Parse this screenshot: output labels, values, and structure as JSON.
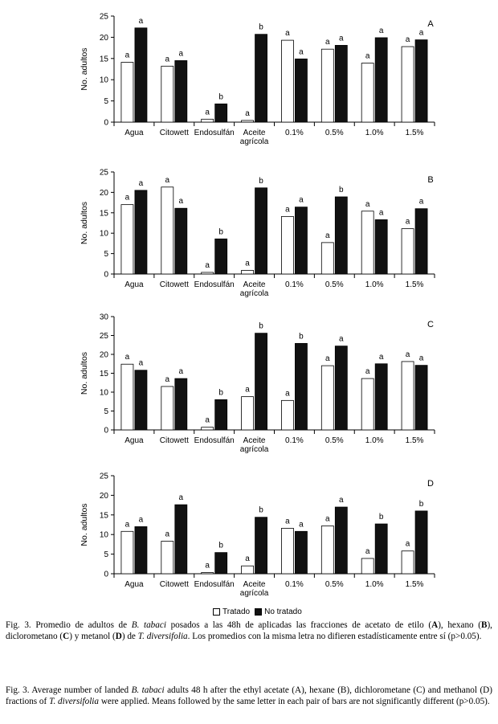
{
  "legend": {
    "tratado": "Tratado",
    "no_tratado": "No tratado"
  },
  "colors": {
    "tratado": "#ffffff",
    "no_tratado": "#111111",
    "axis": "#000000"
  },
  "caption_es": {
    "p1": "Fig. 3. Promedio de adultos de ",
    "species": "B. tabaci",
    "p2": " posados a las 48h de aplicadas las fracciones de acetato de etilo (",
    "A": "A",
    "p3": "), hexano (",
    "B": "B",
    "p4": "), diclorometano (",
    "C": "C",
    "p5": ") y metanol (",
    "D": "D",
    "p6": ") de ",
    "plant": "T. diversifolia",
    "p7": ". Los promedios con la misma letra no difieren estadísticamente entre sí (p>0.05)."
  },
  "caption_en": {
    "p1": "Fig. 3. Average number of landed ",
    "species": "B. tabaci",
    "p2": " adults 48 h after the ethyl acetate (A), hexane (B), dichlorometane (C) and methanol (D) fractions of ",
    "plant": "T. diversifolia",
    "p3": " were applied. Means followed by the same letter in each pair of bars are not significantly different (p>0.05)."
  },
  "chart_data": [
    {
      "type": "bar",
      "panel": "A",
      "ylabel": "No. adultos",
      "ylim": [
        0,
        25
      ],
      "yticks": [
        0,
        5,
        10,
        15,
        20,
        25
      ],
      "categories": [
        "Agua",
        "Citowett",
        "Endosulfán",
        "Aceite agrícola",
        "0.1%",
        "0.5%",
        "1.0%",
        "1.5%"
      ],
      "series": [
        {
          "name": "Tratado",
          "values": [
            14.1,
            13.2,
            0.7,
            0.4,
            19.3,
            17.2,
            13.9,
            17.8
          ],
          "letters": [
            "a",
            "a",
            "a",
            "a",
            "a",
            "a",
            "a",
            "a"
          ]
        },
        {
          "name": "No tratado",
          "values": [
            22.2,
            14.5,
            4.3,
            20.7,
            14.9,
            18.1,
            19.9,
            19.4
          ],
          "letters": [
            "a",
            "a",
            "b",
            "b",
            "a",
            "a",
            "a",
            "a"
          ]
        }
      ]
    },
    {
      "type": "bar",
      "panel": "B",
      "ylabel": "No. adultos",
      "ylim": [
        0,
        25
      ],
      "yticks": [
        0,
        5,
        10,
        15,
        20,
        25
      ],
      "categories": [
        "Agua",
        "Citowett",
        "Endosulfán",
        "Aceite agrícola",
        "0.1%",
        "0.5%",
        "1.0%",
        "1.5%"
      ],
      "series": [
        {
          "name": "Tratado",
          "values": [
            17.0,
            21.3,
            0.4,
            0.9,
            14.1,
            7.7,
            15.4,
            11.1
          ],
          "letters": [
            "a",
            "a",
            "a",
            "a",
            "a",
            "a",
            "a",
            "a"
          ]
        },
        {
          "name": "No tratado",
          "values": [
            20.5,
            16.1,
            8.6,
            21.1,
            16.4,
            18.9,
            13.3,
            16.0
          ],
          "letters": [
            "a",
            "a",
            "b",
            "b",
            "a",
            "b",
            "a",
            "a"
          ]
        }
      ]
    },
    {
      "type": "bar",
      "panel": "C",
      "ylabel": "No. adultos",
      "ylim": [
        0,
        30
      ],
      "yticks": [
        0,
        5,
        10,
        15,
        20,
        25,
        30
      ],
      "categories": [
        "Agua",
        "Citowett",
        "Endosulfán",
        "Aceite agrícola",
        "0.1%",
        "0.5%",
        "1.0%",
        "1.5%"
      ],
      "series": [
        {
          "name": "Tratado",
          "values": [
            17.4,
            11.5,
            0.7,
            8.8,
            7.8,
            17.0,
            13.6,
            18.1
          ],
          "letters": [
            "a",
            "a",
            "a",
            "a",
            "a",
            "a",
            "a",
            "a"
          ]
        },
        {
          "name": "No tratado",
          "values": [
            15.8,
            13.6,
            8.0,
            25.6,
            22.9,
            22.2,
            17.5,
            17.1
          ],
          "letters": [
            "a",
            "a",
            "b",
            "b",
            "b",
            "a",
            "a",
            "a"
          ]
        }
      ]
    },
    {
      "type": "bar",
      "panel": "D",
      "ylabel": "No. adultos",
      "ylim": [
        0,
        25
      ],
      "yticks": [
        0,
        5,
        10,
        15,
        20,
        25
      ],
      "categories": [
        "Agua",
        "Citowett",
        "Endosulfán",
        "Aceite agrícola",
        "0.1%",
        "0.5%",
        "1.0%",
        "1.5%"
      ],
      "series": [
        {
          "name": "Tratado",
          "values": [
            10.8,
            8.3,
            0.3,
            2.0,
            11.6,
            12.2,
            3.9,
            5.8
          ],
          "letters": [
            "a",
            "a",
            "a",
            "a",
            "a",
            "a",
            "a",
            "a"
          ]
        },
        {
          "name": "No tratado",
          "values": [
            12.0,
            17.6,
            5.4,
            14.4,
            10.8,
            17.0,
            12.7,
            16.0
          ],
          "letters": [
            "a",
            "a",
            "b",
            "b",
            "a",
            "a",
            "b",
            "b"
          ]
        }
      ]
    }
  ]
}
